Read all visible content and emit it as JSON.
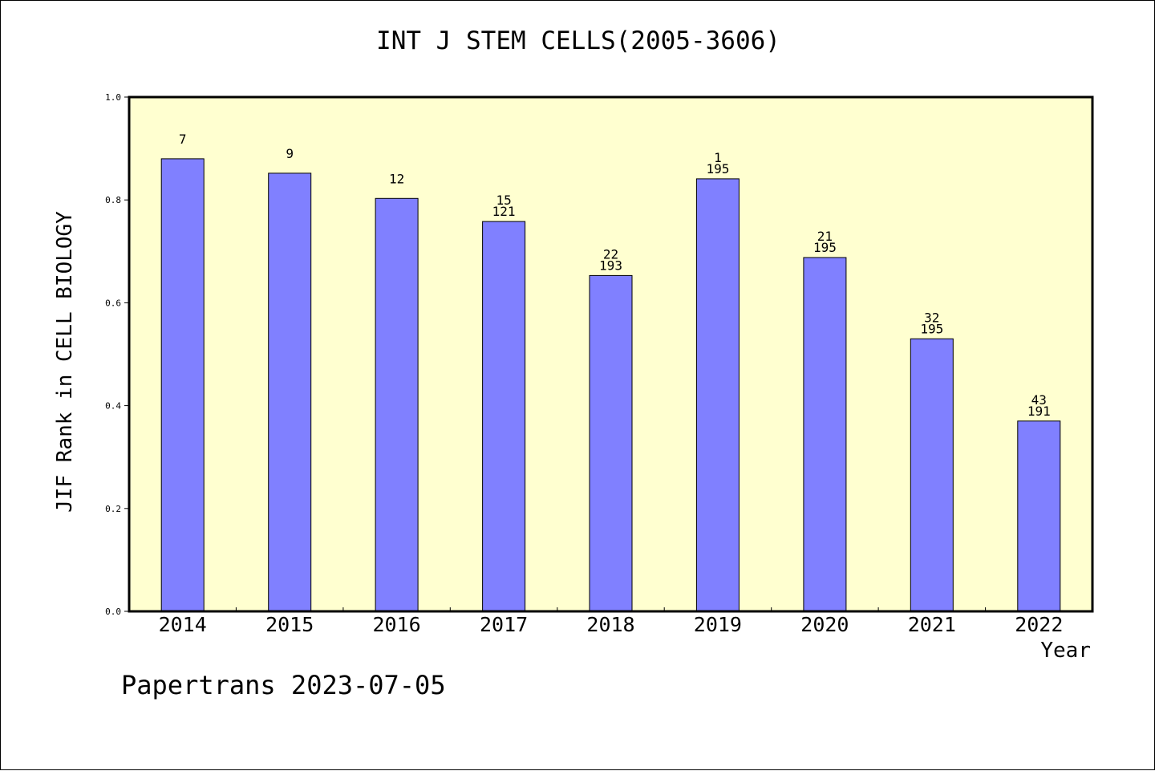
{
  "chart_data": {
    "type": "bar",
    "title": "INT J STEM CELLS(2005-3606)",
    "xlabel": "Year",
    "ylabel": "JIF Rank in CELL BIOLOGY",
    "ylim": [
      0.0,
      1.0
    ],
    "yticks": [
      0.0,
      0.2,
      0.4,
      0.6,
      0.8,
      1.0
    ],
    "ytick_labels": [
      "0.0",
      "0.2",
      "0.4",
      "0.6",
      "0.8",
      "1.0"
    ],
    "categories": [
      "2014",
      "2015",
      "2016",
      "2017",
      "2018",
      "2019",
      "2020",
      "2021",
      "2022"
    ],
    "values": [
      0.88,
      0.852,
      0.803,
      0.758,
      0.653,
      0.841,
      0.688,
      0.53,
      0.37
    ],
    "annotations": [
      [
        "7"
      ],
      [
        "9"
      ],
      [
        "12"
      ],
      [
        "15",
        "121"
      ],
      [
        "22",
        "193"
      ],
      [
        "1",
        "195"
      ],
      [
        "21",
        "195"
      ],
      [
        "32",
        "195"
      ],
      [
        "43",
        "191"
      ]
    ],
    "bar_color": "#8080ff",
    "plot_background": "#ffffd0"
  },
  "footer": "Papertrans 2023-07-05"
}
